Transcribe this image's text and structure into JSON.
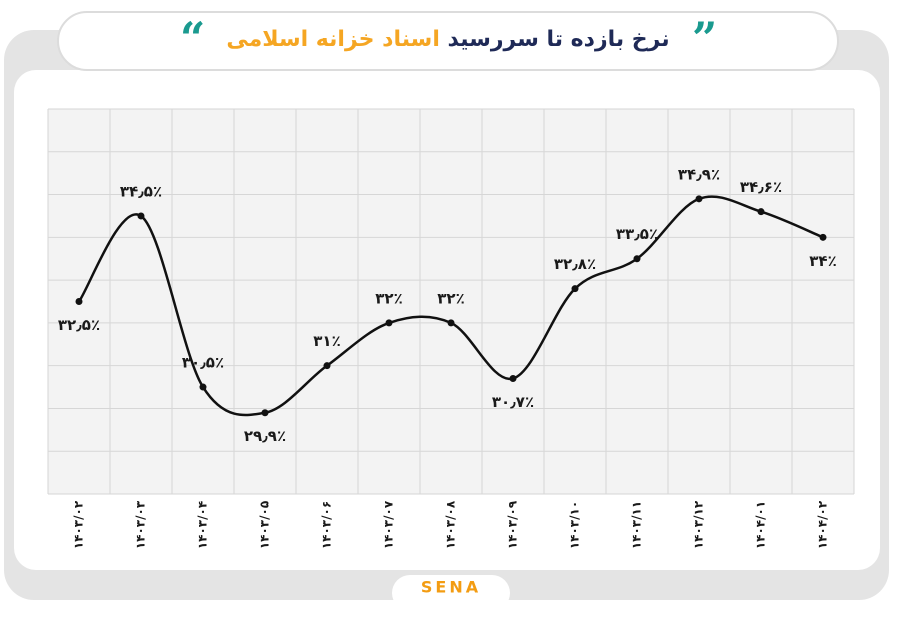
{
  "chart_data": {
    "type": "line",
    "title": {
      "main": "نرخ بازده تا سررسید",
      "highlight": "اسناد خزانه اسلامی"
    },
    "brand": "SENA",
    "categories": [
      "۱۴۰۳/۰۲",
      "۱۴۰۳/۰۳",
      "۱۴۰۳/۰۴",
      "۱۴۰۳/۰۵",
      "۱۴۰۳/۰۶",
      "۱۴۰۳/۰۷",
      "۱۴۰۳/۰۸",
      "۱۴۰۳/۰۹",
      "۱۴۰۳/۱۰",
      "۱۴۰۳/۱۱",
      "۱۴۰۳/۱۲",
      "۱۴۰۴/۰۱",
      "۱۴۰۴/۰۲"
    ],
    "values": [
      32.5,
      34.5,
      30.5,
      29.9,
      31,
      32,
      32,
      30.7,
      32.8,
      33.5,
      34.9,
      34.6,
      34
    ],
    "value_labels": [
      "۳۲٫۵٪",
      "۳۴٫۵٪",
      "۳۰٫۵٪",
      "۲۹٫۹٪",
      "۳۱٪",
      "۳۲٪",
      "۳۲٪",
      "۳۰٫۷٪",
      "۳۲٫۸٪",
      "۳۳٫۵٪",
      "۳۴٫۹٪",
      "۳۴٫۶٪",
      "۳۴٪"
    ],
    "color": "#111111",
    "ylim": [
      28,
      37
    ],
    "yticks": [
      28,
      29,
      30,
      31,
      32,
      33,
      34,
      35,
      36,
      37
    ],
    "grid": true
  }
}
